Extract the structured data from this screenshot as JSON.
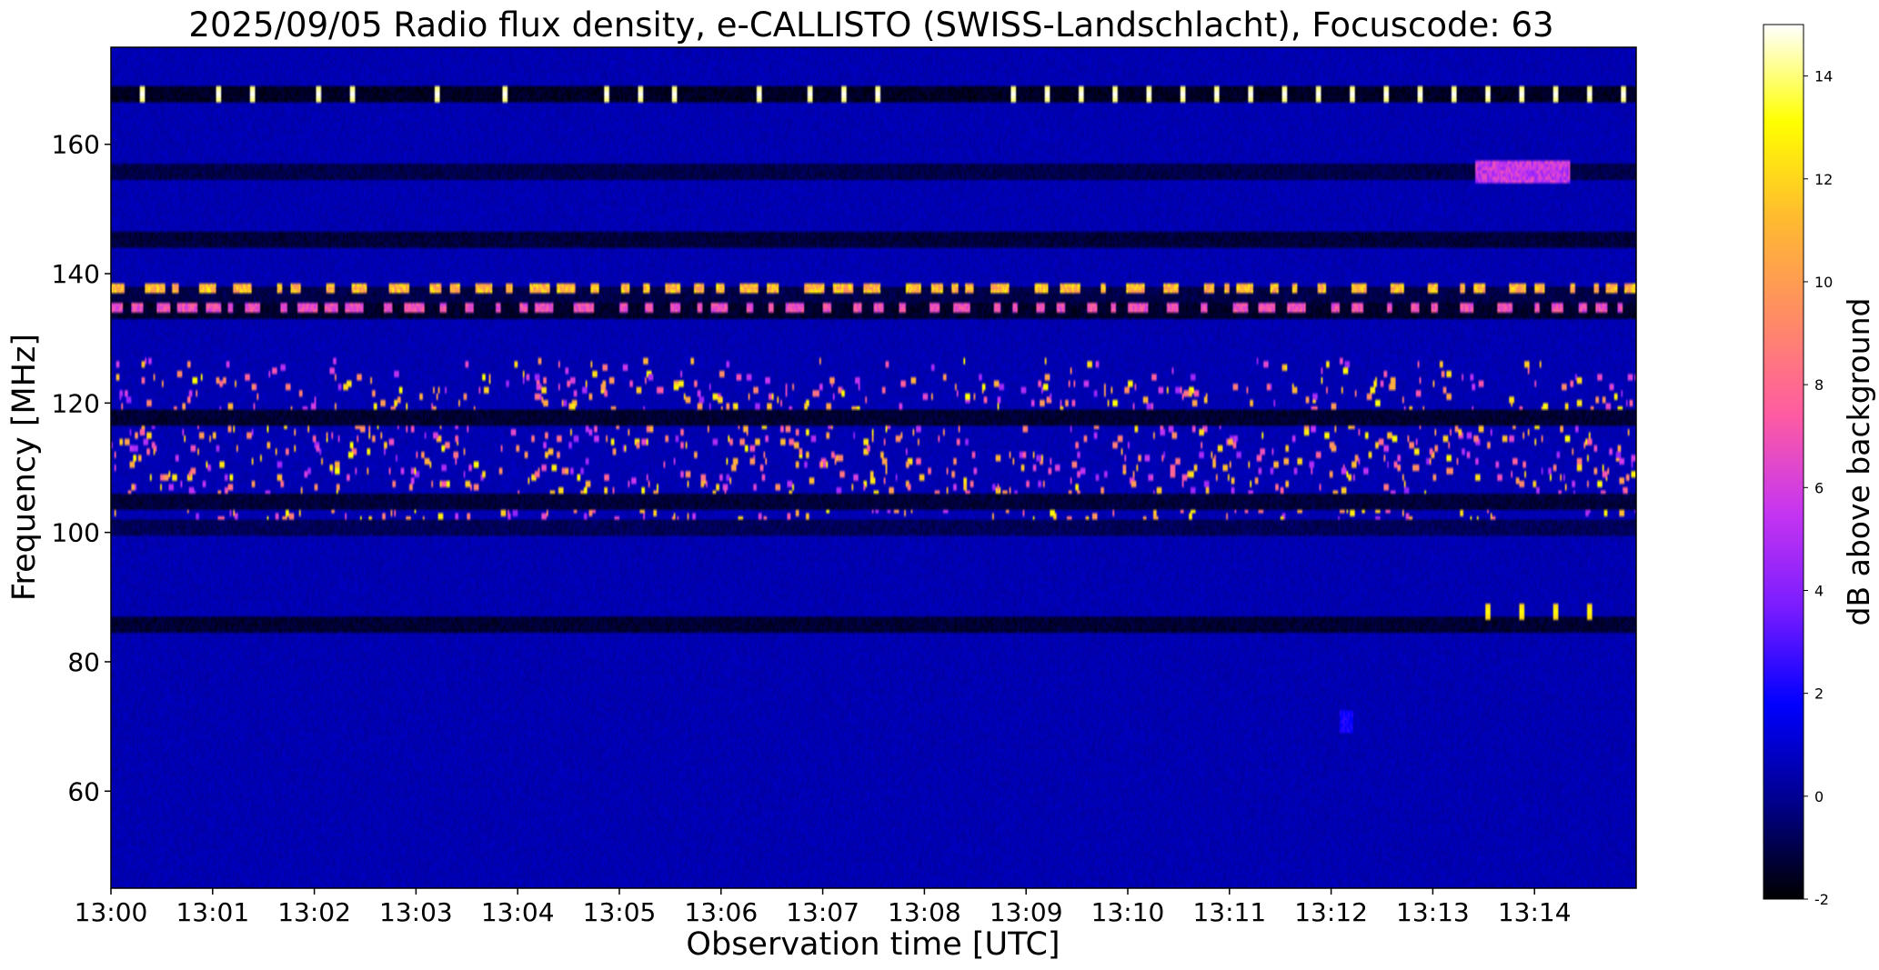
{
  "chart_data": {
    "type": "heatmap",
    "title": "2025/09/05  Radio flux density, e-CALLISTO (SWISS-Landschlacht), Focuscode: 63",
    "xlabel": "Observation time [UTC]",
    "ylabel": "Frequency [MHz]",
    "x_ticks": [
      "13:00",
      "13:01",
      "13:02",
      "13:03",
      "13:04",
      "13:05",
      "13:06",
      "13:07",
      "13:08",
      "13:09",
      "13:10",
      "13:11",
      "13:12",
      "13:13",
      "13:14"
    ],
    "xlim": [
      "13:00",
      "13:15"
    ],
    "y_ticks": [
      60,
      80,
      100,
      120,
      140,
      160
    ],
    "ylim": [
      45,
      175
    ],
    "colorbar": {
      "label": "dB above background",
      "ticks": [
        -2,
        0,
        2,
        4,
        6,
        8,
        10,
        12,
        14
      ],
      "range": [
        -2,
        15
      ],
      "colormap": "gnuplot2",
      "stops": [
        "#000000",
        "#00008c",
        "#0000ff",
        "#7a1cff",
        "#c736f0",
        "#ff5ca0",
        "#ff8c64",
        "#ffba30",
        "#ffff00",
        "#ffffff"
      ]
    },
    "background_level_db": 0.5,
    "features": [
      {
        "kind": "band",
        "freq_mhz": 168,
        "level_db": -1.5,
        "time_from": "13:00",
        "time_to": "13:15"
      },
      {
        "kind": "periodic_spikes",
        "freq_mhz": 168,
        "level_db": 15,
        "times": [
          "13:00:18",
          "13:01:03",
          "13:01:23",
          "13:02:02",
          "13:02:22",
          "13:03:12",
          "13:03:52",
          "13:04:52",
          "13:05:12",
          "13:05:32",
          "13:06:22",
          "13:06:52",
          "13:07:12",
          "13:07:32",
          "13:08:52",
          "13:09:12",
          "13:09:32",
          "13:09:52",
          "13:10:12",
          "13:10:32",
          "13:10:52",
          "13:11:12",
          "13:11:32",
          "13:11:52",
          "13:12:12",
          "13:12:32",
          "13:12:52",
          "13:13:12",
          "13:13:32",
          "13:13:52",
          "13:14:12",
          "13:14:32",
          "13:14:52"
        ]
      },
      {
        "kind": "band",
        "freq_mhz": 156,
        "level_db": -1.0,
        "time_from": "13:00",
        "time_to": "13:15"
      },
      {
        "kind": "band",
        "freq_mhz": 145.5,
        "level_db": -1.2,
        "time_from": "13:00",
        "time_to": "13:15"
      },
      {
        "kind": "band",
        "freq_mhz": 137,
        "level_db": -1.0,
        "time_from": "13:00",
        "time_to": "13:15"
      },
      {
        "kind": "band",
        "freq_mhz": 134.5,
        "level_db": -1.4,
        "time_from": "13:00",
        "time_to": "13:15"
      },
      {
        "kind": "intermittent",
        "freq_mhz": 138,
        "level_db": 13,
        "time_from": "13:00",
        "time_to": "13:15"
      },
      {
        "kind": "intermittent",
        "freq_mhz": 135,
        "level_db": 8,
        "time_from": "13:00",
        "time_to": "13:15"
      },
      {
        "kind": "burst_cluster",
        "freq_from_mhz": 100,
        "freq_to_mhz": 127,
        "level_db": 12,
        "time_from": "13:00",
        "time_to": "13:15"
      },
      {
        "kind": "band",
        "freq_mhz": 118,
        "level_db": -1.3,
        "time_from": "13:00",
        "time_to": "13:15"
      },
      {
        "kind": "band",
        "freq_mhz": 105,
        "level_db": -1.2,
        "time_from": "13:00",
        "time_to": "13:15"
      },
      {
        "kind": "band",
        "freq_mhz": 101,
        "level_db": -0.8,
        "time_from": "13:00",
        "time_to": "13:15"
      },
      {
        "kind": "band",
        "freq_mhz": 86,
        "level_db": -1.3,
        "time_from": "13:00",
        "time_to": "13:15"
      },
      {
        "kind": "periodic_spikes",
        "freq_mhz": 88,
        "level_db": 13,
        "times": [
          "13:13:32",
          "13:13:52",
          "13:14:12",
          "13:14:32"
        ]
      },
      {
        "kind": "patch",
        "freq_mhz": 156,
        "level_db": 7,
        "time_from": "13:13:25",
        "time_to": "13:14:20"
      },
      {
        "kind": "patch",
        "freq_mhz": 71,
        "level_db": 2.5,
        "time_from": "13:12:05",
        "time_to": "13:12:12"
      }
    ]
  }
}
